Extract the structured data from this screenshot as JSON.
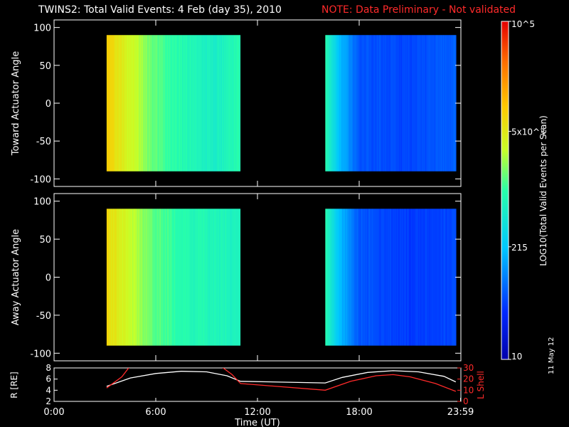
{
  "header": {
    "title": "TWINS2: Total Valid Events:  4 Feb (day  35), 2010",
    "note": "NOTE: Data Preliminary - Not validated",
    "note_color": "#ff2a2a"
  },
  "footer": {
    "date_stamp": "11 May 12"
  },
  "colorbar": {
    "label": "LOG10(Total Valid Events per Scan)",
    "ticks": [
      {
        "label": "10",
        "value": 10
      },
      {
        "label": "215",
        "value": 215
      },
      {
        "label": "5x10^3",
        "value": 5000
      },
      {
        "label": "10^5",
        "value": 100000
      }
    ],
    "scale": "log",
    "range": [
      10,
      100000
    ],
    "colormap": "rainbow (blue-cyan-green-yellow-orange-red)"
  },
  "chart_data": [
    {
      "type": "heatmap",
      "title": "",
      "ylabel": "Toward Actuator Angle",
      "xlabel": "",
      "xlim": [
        0,
        24
      ],
      "ylim": [
        -110,
        110
      ],
      "yticks": [
        -100,
        -50,
        0,
        50,
        100
      ],
      "data_segments": [
        {
          "t_start": 3.1,
          "t_end": 11.0,
          "angle_range": [
            -90,
            90
          ],
          "profile": [
            {
              "t": 3.1,
              "value": 9000
            },
            {
              "t": 3.6,
              "value": 6000
            },
            {
              "t": 4.8,
              "value": 3000
            },
            {
              "t": 5.8,
              "value": 1500
            },
            {
              "t": 7.5,
              "value": 900
            },
            {
              "t": 9.5,
              "value": 600
            },
            {
              "t": 10.8,
              "value": 900
            }
          ]
        },
        {
          "t_start": 16.0,
          "t_end": 23.7,
          "angle_range": [
            -90,
            90
          ],
          "profile": [
            {
              "t": 16.0,
              "value": 900
            },
            {
              "t": 16.8,
              "value": 200
            },
            {
              "t": 18.0,
              "value": 60
            },
            {
              "t": 21.0,
              "value": 50
            },
            {
              "t": 23.7,
              "value": 70
            }
          ]
        }
      ]
    },
    {
      "type": "heatmap",
      "title": "",
      "ylabel": "Away Actuator Angle",
      "xlabel": "",
      "xlim": [
        0,
        24
      ],
      "ylim": [
        -110,
        110
      ],
      "yticks": [
        -100,
        -50,
        0,
        50,
        100
      ],
      "data_segments": [
        {
          "t_start": 3.1,
          "t_end": 11.0,
          "angle_range": [
            -90,
            90
          ],
          "profile": [
            {
              "t": 3.1,
              "value": 7000
            },
            {
              "t": 4.5,
              "value": 3000
            },
            {
              "t": 5.8,
              "value": 1500
            },
            {
              "t": 7.5,
              "value": 900
            },
            {
              "t": 10.8,
              "value": 700
            }
          ]
        },
        {
          "t_start": 16.0,
          "t_end": 23.7,
          "angle_range": [
            -90,
            90
          ],
          "profile": [
            {
              "t": 16.0,
              "value": 900
            },
            {
              "t": 16.8,
              "value": 200
            },
            {
              "t": 18.0,
              "value": 60
            },
            {
              "t": 21.0,
              "value": 45
            },
            {
              "t": 23.7,
              "value": 50
            }
          ]
        }
      ]
    },
    {
      "type": "line",
      "title": "",
      "xlabel": "Time (UT)",
      "x_ticks": [
        "0:00",
        "6:00",
        "12:00",
        "18:00",
        "23:59"
      ],
      "x_tick_values": [
        0,
        6,
        12,
        18,
        23.98
      ],
      "xlim": [
        0,
        24
      ],
      "ylabel_left": "R [RE]",
      "ylim_left": [
        2,
        8
      ],
      "yticks_left": [
        2,
        4,
        6,
        8
      ],
      "ylabel_right": "L Shell",
      "ylim_right": [
        0,
        30
      ],
      "yticks_right": [
        0,
        10,
        20,
        30
      ],
      "series": [
        {
          "axis": "left",
          "color": "#ffffff",
          "x": [
            3.1,
            4.5,
            6.0,
            7.5,
            9.0,
            10.2,
            11.0,
            16.0,
            17.0,
            18.5,
            20.0,
            21.5,
            23.0,
            23.7
          ],
          "y": [
            4.7,
            6.2,
            7.0,
            7.4,
            7.3,
            6.6,
            5.6,
            5.3,
            6.3,
            7.2,
            7.5,
            7.3,
            6.5,
            5.5
          ]
        },
        {
          "axis": "right",
          "color": "#ff2a2a",
          "x": [
            3.1,
            4.0,
            4.5,
            9.8,
            10.5,
            11.0,
            16.0,
            17.5,
            19.0,
            20.0,
            21.0,
            22.5,
            23.7
          ],
          "y": [
            12,
            22,
            32,
            32,
            24,
            16,
            10,
            18,
            23,
            24,
            22,
            16,
            9
          ]
        }
      ]
    }
  ]
}
